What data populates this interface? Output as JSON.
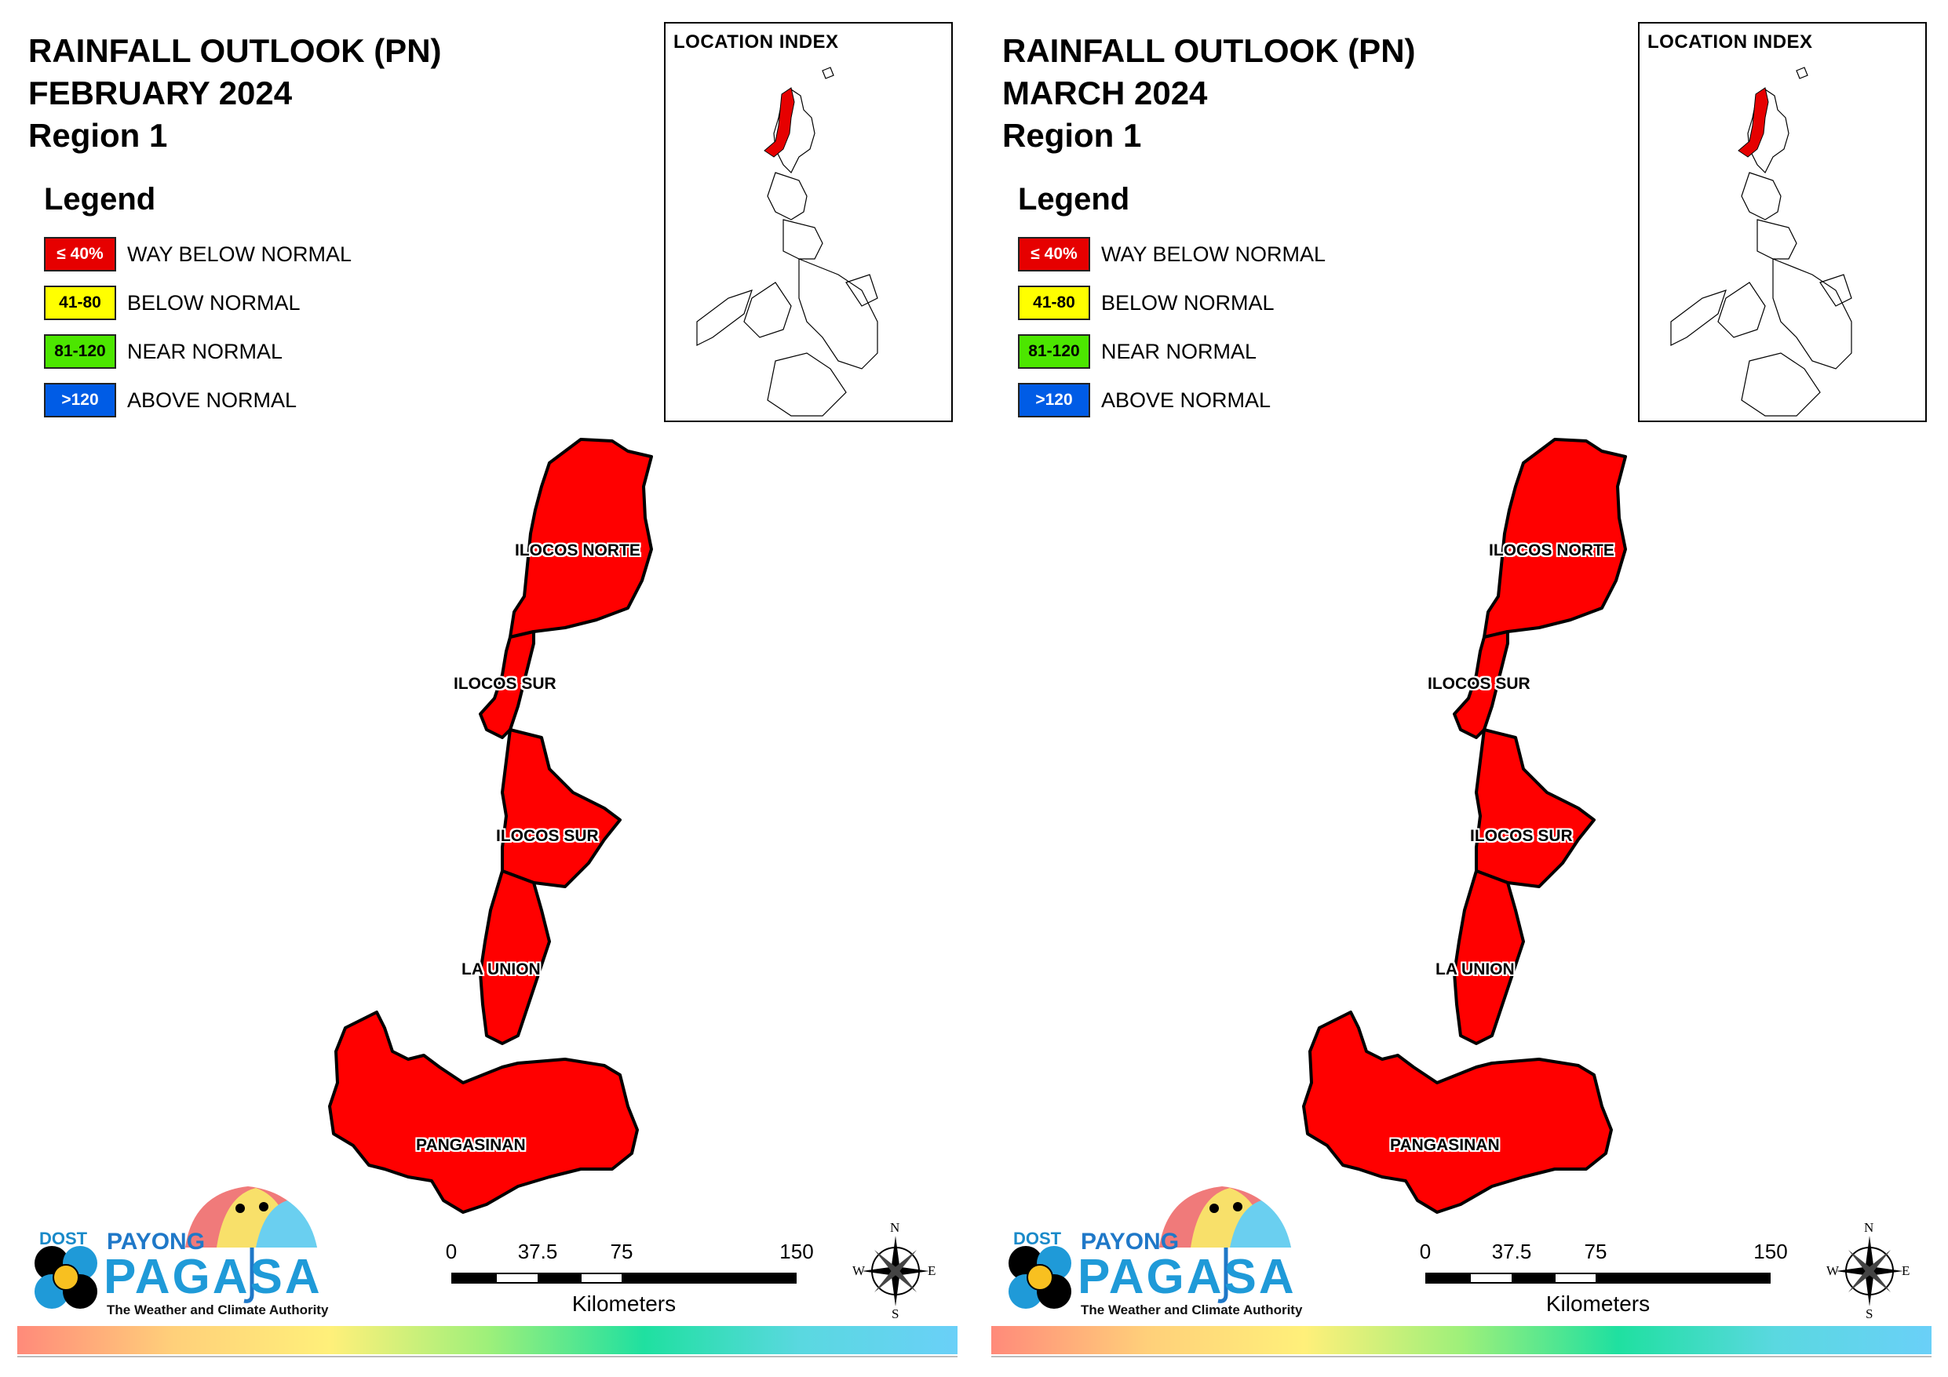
{
  "maps": [
    {
      "title_line1": "RAINFALL OUTLOOK (PN)",
      "title_line2": "FEBRUARY 2024",
      "title_line3": "Region 1",
      "legend_heading": "Legend",
      "legend_items": [
        {
          "range": "≤ 40%",
          "label": "WAY BELOW NORMAL",
          "color": "#e60000",
          "text_color": "#ffffff"
        },
        {
          "range": "41-80",
          "label": "BELOW NORMAL",
          "color": "#ffff00",
          "text_color": "#000000"
        },
        {
          "range": "81-120",
          "label": "NEAR NORMAL",
          "color": "#4ce600",
          "text_color": "#000000"
        },
        {
          "range": ">120",
          "label": "ABOVE NORMAL",
          "color": "#005ce6",
          "text_color": "#ffffff"
        }
      ],
      "location_index_title": "LOCATION INDEX",
      "provinces": [
        "ILOCOS NORTE",
        "ILOCOS SUR",
        "ILOCOS SUR",
        "LA UNION",
        "PANGASINAN"
      ],
      "province_category": "WAY BELOW NORMAL",
      "province_fill": "#ff0000",
      "scale_ticks": [
        "0",
        "37.5",
        "75",
        "150"
      ],
      "scale_unit": "Kilometers",
      "compass": {
        "n": "N",
        "s": "S",
        "e": "E",
        "w": "W"
      },
      "logo": {
        "dost": "DOST",
        "payong": "PAYONG",
        "pagasa": "PAGASA",
        "tagline": "The Weather and Climate Authority"
      }
    },
    {
      "title_line1": "RAINFALL OUTLOOK (PN)",
      "title_line2": "MARCH 2024",
      "title_line3": "Region 1",
      "legend_heading": "Legend",
      "legend_items": [
        {
          "range": "≤ 40%",
          "label": "WAY BELOW NORMAL",
          "color": "#e60000",
          "text_color": "#ffffff"
        },
        {
          "range": "41-80",
          "label": "BELOW NORMAL",
          "color": "#ffff00",
          "text_color": "#000000"
        },
        {
          "range": "81-120",
          "label": "NEAR NORMAL",
          "color": "#4ce600",
          "text_color": "#000000"
        },
        {
          "range": ">120",
          "label": "ABOVE NORMAL",
          "color": "#005ce6",
          "text_color": "#ffffff"
        }
      ],
      "location_index_title": "LOCATION INDEX",
      "provinces": [
        "ILOCOS NORTE",
        "ILOCOS SUR",
        "ILOCOS SUR",
        "LA UNION",
        "PANGASINAN"
      ],
      "province_category": "WAY BELOW NORMAL",
      "province_fill": "#ff0000",
      "scale_ticks": [
        "0",
        "37.5",
        "75",
        "150"
      ],
      "scale_unit": "Kilometers",
      "compass": {
        "n": "N",
        "s": "S",
        "e": "E",
        "w": "W"
      },
      "logo": {
        "dost": "DOST",
        "payong": "PAYONG",
        "pagasa": "PAGASA",
        "tagline": "The Weather and Climate Authority"
      }
    }
  ]
}
